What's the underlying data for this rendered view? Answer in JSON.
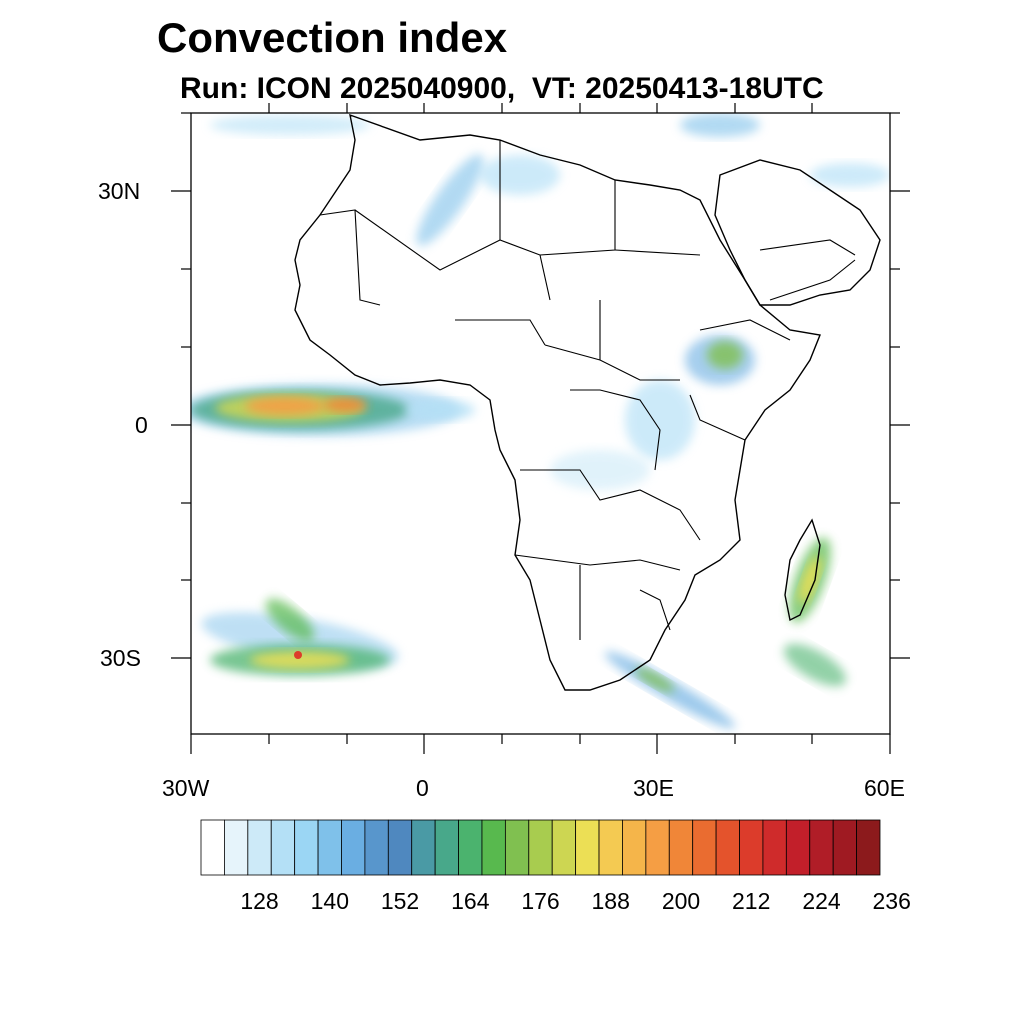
{
  "title": "Convection index",
  "subtitle": "Run: ICON 2025040900,  VT: 20250413-18UTC",
  "map": {
    "region": "Africa",
    "lon_range": [
      -30,
      60
    ],
    "lat_range": [
      -40,
      40
    ],
    "lat_labels": [
      "30N",
      "0",
      "30S"
    ],
    "lon_labels": [
      "30W",
      "0",
      "30E",
      "60E"
    ]
  },
  "colorbar": {
    "colors": [
      "#ffffff",
      "#e6f4fb",
      "#cdeaf8",
      "#b4e0f6",
      "#9bd6f4",
      "#7fc1ea",
      "#6aaee2",
      "#5896cc",
      "#4f88bf",
      "#4a9aa5",
      "#48a88a",
      "#4bb36e",
      "#58b94e",
      "#80c050",
      "#a8cc4f",
      "#cdd652",
      "#ecdf55",
      "#f4ca52",
      "#f5b54a",
      "#f59e44",
      "#f08638",
      "#ea6c30",
      "#e4532c",
      "#dc3c2b",
      "#cf2b2b",
      "#c21f2a",
      "#b01d27",
      "#9f1a22",
      "#8c1a1c"
    ],
    "tick_labels": [
      "128",
      "140",
      "152",
      "164",
      "176",
      "188",
      "200",
      "212",
      "224",
      "236"
    ]
  }
}
